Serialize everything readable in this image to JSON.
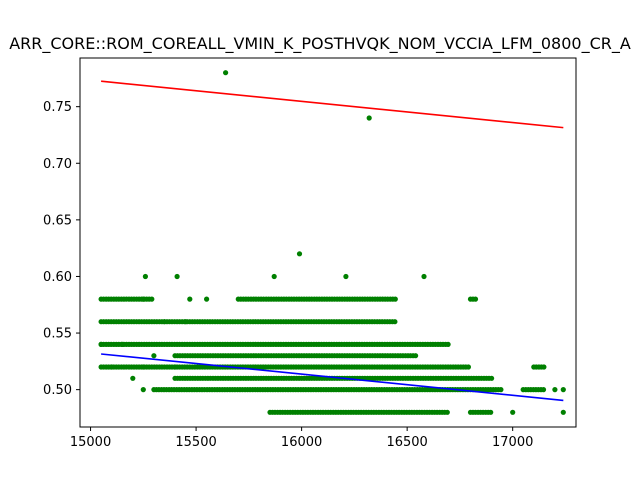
{
  "chart_data": {
    "type": "scatter",
    "title": "ARR_CORE::ROM_COREALL_VMIN_K_POSTHVQK_NOM_VCCIA_LFM_0800_CR_A",
    "xlabel": "",
    "ylabel": "",
    "xlim": [
      14950,
      17300
    ],
    "ylim": [
      0.467,
      0.793
    ],
    "grid": false,
    "x_ticks": [
      15000,
      15500,
      16000,
      16500,
      17000
    ],
    "y_ticks": [
      0.5,
      0.55,
      0.6,
      0.65,
      0.7,
      0.75
    ],
    "y_tick_labels": [
      "0.50",
      "0.55",
      "0.60",
      "0.65",
      "0.70",
      "0.75"
    ],
    "colors": {
      "points": "#008000",
      "upper_line": "#ff0000",
      "lower_line": "#0000ff"
    },
    "bands": [
      {
        "y": 0.48,
        "x_ranges": [
          [
            15850,
            16700
          ],
          [
            16800,
            16900
          ]
        ]
      },
      {
        "y": 0.5,
        "x_ranges": [
          [
            15300,
            16950
          ],
          [
            17050,
            17150
          ]
        ]
      },
      {
        "y": 0.51,
        "x_ranges": [
          [
            15400,
            16900
          ]
        ]
      },
      {
        "y": 0.52,
        "x_ranges": [
          [
            15050,
            16800
          ],
          [
            17100,
            17150
          ]
        ]
      },
      {
        "y": 0.53,
        "x_ranges": [
          [
            15400,
            16550
          ]
        ]
      },
      {
        "y": 0.54,
        "x_ranges": [
          [
            15050,
            16700
          ]
        ]
      },
      {
        "y": 0.56,
        "x_ranges": [
          [
            15050,
            16450
          ]
        ]
      },
      {
        "y": 0.58,
        "x_ranges": [
          [
            15050,
            15300
          ],
          [
            15700,
            16450
          ],
          [
            16800,
            16830
          ]
        ]
      }
    ],
    "points": [
      [
        15250,
        0.5
      ],
      [
        15200,
        0.51
      ],
      [
        15100,
        0.52
      ],
      [
        15250,
        0.52
      ],
      [
        15400,
        0.52
      ],
      [
        15300,
        0.53
      ],
      [
        15050,
        0.54
      ],
      [
        15150,
        0.54
      ],
      [
        15350,
        0.56
      ],
      [
        15450,
        0.56
      ],
      [
        15250,
        0.58
      ],
      [
        15470,
        0.58
      ],
      [
        15550,
        0.58
      ],
      [
        15260,
        0.6
      ],
      [
        15410,
        0.6
      ],
      [
        15870,
        0.6
      ],
      [
        16210,
        0.6
      ],
      [
        16580,
        0.6
      ],
      [
        15990,
        0.62
      ],
      [
        16320,
        0.74
      ],
      [
        15640,
        0.78
      ],
      [
        17000,
        0.48
      ],
      [
        17240,
        0.48
      ],
      [
        17240,
        0.5
      ],
      [
        17200,
        0.5
      ]
    ],
    "fit_lines": [
      {
        "x": [
          15050,
          17240
        ],
        "y": [
          0.7725,
          0.7315
        ]
      },
      {
        "x": [
          15050,
          17240
        ],
        "y": [
          0.5315,
          0.4905
        ]
      }
    ]
  }
}
